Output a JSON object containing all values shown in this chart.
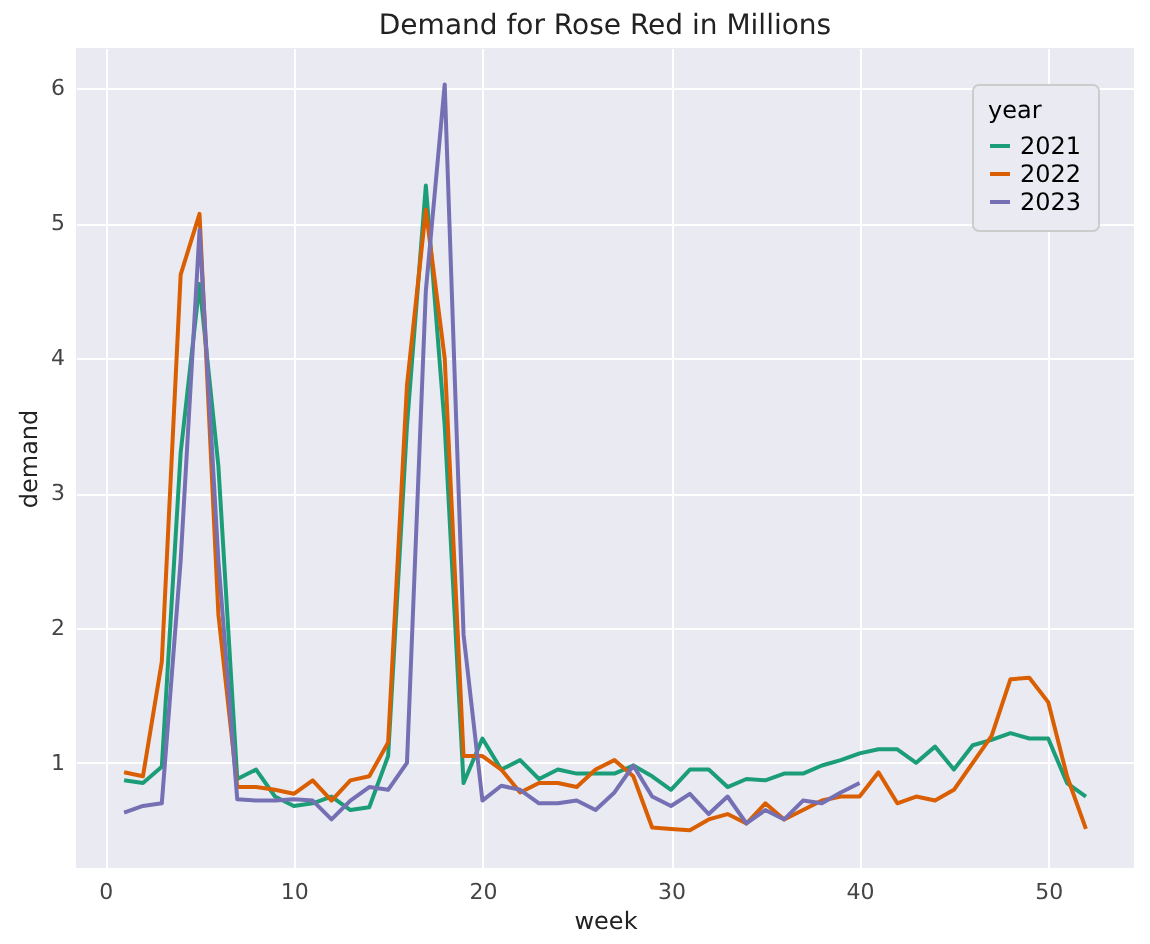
{
  "chart_data": {
    "type": "line",
    "title": "Demand for Rose Red in Millions",
    "xlabel": "week",
    "ylabel": "demand",
    "legend_title": "year",
    "legend": "top right",
    "grid": true,
    "x": [
      1,
      2,
      3,
      4,
      5,
      6,
      7,
      8,
      9,
      10,
      11,
      12,
      13,
      14,
      15,
      16,
      17,
      18,
      19,
      20,
      21,
      22,
      23,
      24,
      25,
      26,
      27,
      28,
      29,
      30,
      31,
      32,
      33,
      34,
      35,
      36,
      37,
      38,
      39,
      40,
      41,
      42,
      43,
      44,
      45,
      46,
      47,
      48,
      49,
      50,
      51,
      52
    ],
    "xlim": [
      -1.55,
      54.55
    ],
    "xticks": [
      0,
      10,
      20,
      30,
      40,
      50
    ],
    "ylim": [
      0.22,
      6.3
    ],
    "yticks": [
      1,
      2,
      3,
      4,
      5,
      6
    ],
    "series": [
      {
        "name": "2021",
        "color": "#1b9e77",
        "values": [
          0.87,
          0.85,
          0.97,
          3.3,
          4.55,
          3.2,
          0.88,
          0.95,
          0.75,
          0.68,
          0.7,
          0.75,
          0.65,
          0.67,
          1.05,
          3.5,
          5.28,
          3.5,
          0.85,
          1.18,
          0.95,
          1.02,
          0.88,
          0.95,
          0.92,
          0.92,
          0.92,
          0.98,
          0.9,
          0.8,
          0.95,
          0.95,
          0.82,
          0.88,
          0.87,
          0.92,
          0.92,
          0.98,
          1.02,
          1.07,
          1.1,
          1.1,
          1.0,
          1.12,
          0.95,
          1.13,
          1.17,
          1.22,
          1.18,
          1.18,
          0.85,
          0.75
        ]
      },
      {
        "name": "2022",
        "color": "#d95f02",
        "values": [
          0.93,
          0.9,
          1.75,
          4.62,
          5.07,
          2.1,
          0.82,
          0.82,
          0.8,
          0.77,
          0.87,
          0.72,
          0.87,
          0.9,
          1.15,
          3.8,
          5.1,
          4.0,
          1.05,
          1.05,
          0.95,
          0.78,
          0.85,
          0.85,
          0.82,
          0.95,
          1.02,
          0.9,
          0.52,
          0.51,
          0.5,
          0.58,
          0.62,
          0.55,
          0.7,
          0.58,
          0.65,
          0.72,
          0.75,
          0.75,
          0.93,
          0.7,
          0.75,
          0.72,
          0.8,
          1.0,
          1.2,
          1.62,
          1.63,
          1.45,
          0.9,
          0.51
        ]
      },
      {
        "name": "2023",
        "color": "#7570b3",
        "values": [
          0.63,
          0.68,
          0.7,
          2.5,
          4.95,
          2.5,
          0.73,
          0.72,
          0.72,
          0.73,
          0.72,
          0.58,
          0.72,
          0.82,
          0.8,
          1.0,
          4.5,
          6.03,
          1.95,
          0.72,
          0.83,
          0.8,
          0.7,
          0.7,
          0.72,
          0.65,
          0.78,
          0.98,
          0.75,
          0.68,
          0.77,
          0.62,
          0.75,
          0.55,
          0.65,
          0.58,
          0.72,
          0.7,
          0.78,
          0.85,
          null,
          null,
          null,
          null,
          null,
          null,
          null,
          null,
          null,
          null,
          null,
          null
        ]
      }
    ]
  }
}
